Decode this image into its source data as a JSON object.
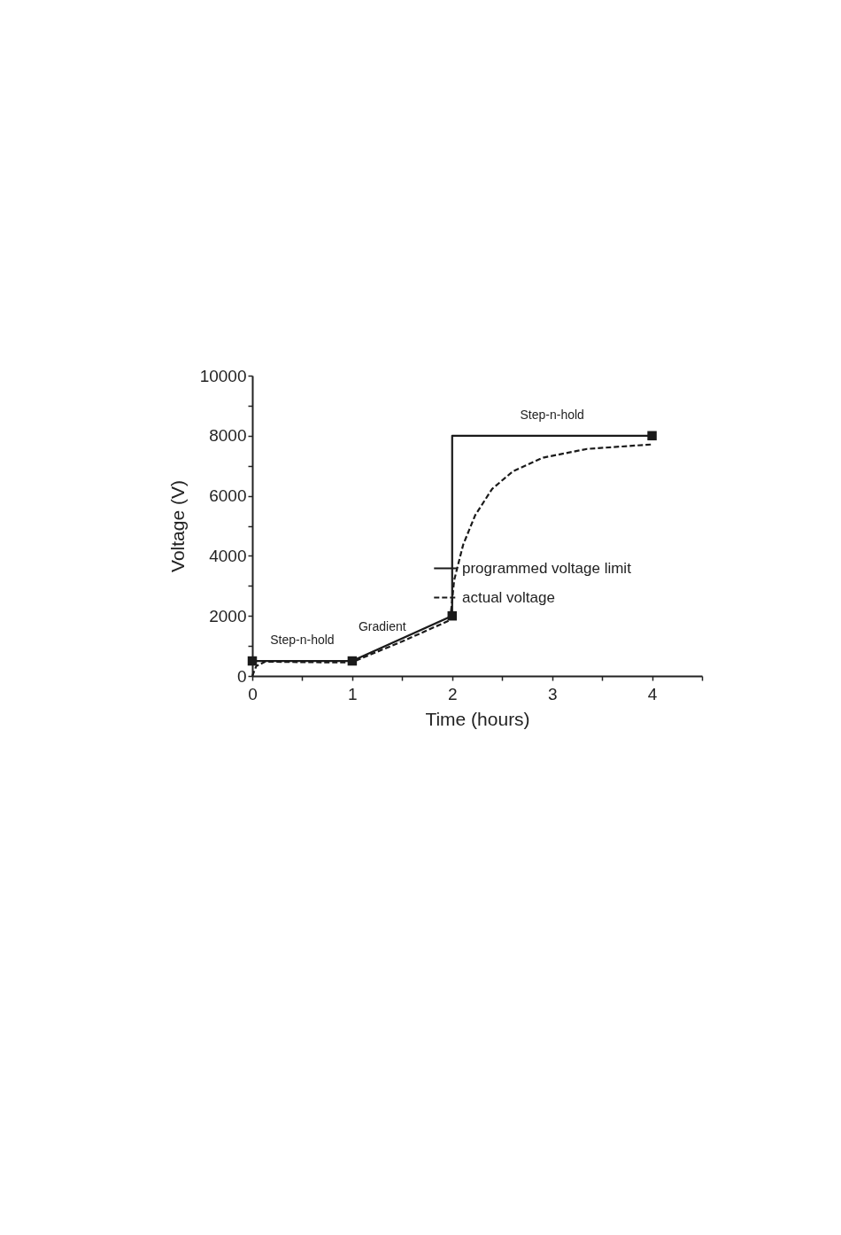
{
  "chart_data": {
    "type": "line",
    "xlabel": "Time (hours)",
    "ylabel": "Voltage (V)",
    "xlim": [
      0,
      4.5
    ],
    "xticks": [
      0,
      {
        "value": 0.5,
        "label": null
      },
      1,
      {
        "value": 1.5,
        "label": null
      },
      2,
      {
        "value": 2.5,
        "label": null
      },
      3,
      {
        "value": 3.5,
        "label": null
      },
      4,
      {
        "value": 4.5,
        "label": null
      }
    ],
    "ylim": [
      0,
      10000
    ],
    "yticks": [
      0,
      {
        "value": 1000,
        "label": null
      },
      2000,
      {
        "value": 3000,
        "label": null
      },
      4000,
      {
        "value": 5000,
        "label": null
      },
      6000,
      {
        "value": 7000,
        "label": null
      },
      8000,
      {
        "value": 9000,
        "label": null
      },
      10000
    ],
    "grid": false,
    "legend": "bottom right",
    "series": [
      {
        "name": "programmed voltage limit",
        "color": "#1a1a1a",
        "line_style": "solid",
        "marker": "none",
        "x": [
          0,
          1,
          2,
          2,
          4
        ],
        "values": [
          500,
          500,
          2000,
          8000,
          8000
        ]
      },
      {
        "name": "actual voltage",
        "color": "#1a1a1a",
        "line_style": "dashed",
        "marker": "none",
        "x": [
          0,
          0.04,
          0.13,
          0.5,
          0.99,
          1.5,
          1.98,
          2.02,
          2.11,
          2.23,
          2.4,
          2.61,
          2.91,
          3.35,
          4.0
        ],
        "values": [
          0,
          330,
          480,
          460,
          450,
          1150,
          1860,
          3190,
          4370,
          5350,
          6230,
          6820,
          7270,
          7560,
          7710
        ]
      },
      {
        "type": "scatter",
        "color": "#1a1a1a",
        "marker": "square",
        "x": [
          0,
          1,
          2,
          4
        ],
        "values": [
          500,
          500,
          2000,
          8000
        ]
      }
    ],
    "annotations": [
      {
        "text": "Step-n-hold",
        "x": 0.5,
        "y": 500
      },
      {
        "text": "Gradient",
        "x": 1.3,
        "y": 950
      },
      {
        "text": "Step-n-hold",
        "x": 3,
        "y": 8000
      }
    ]
  }
}
